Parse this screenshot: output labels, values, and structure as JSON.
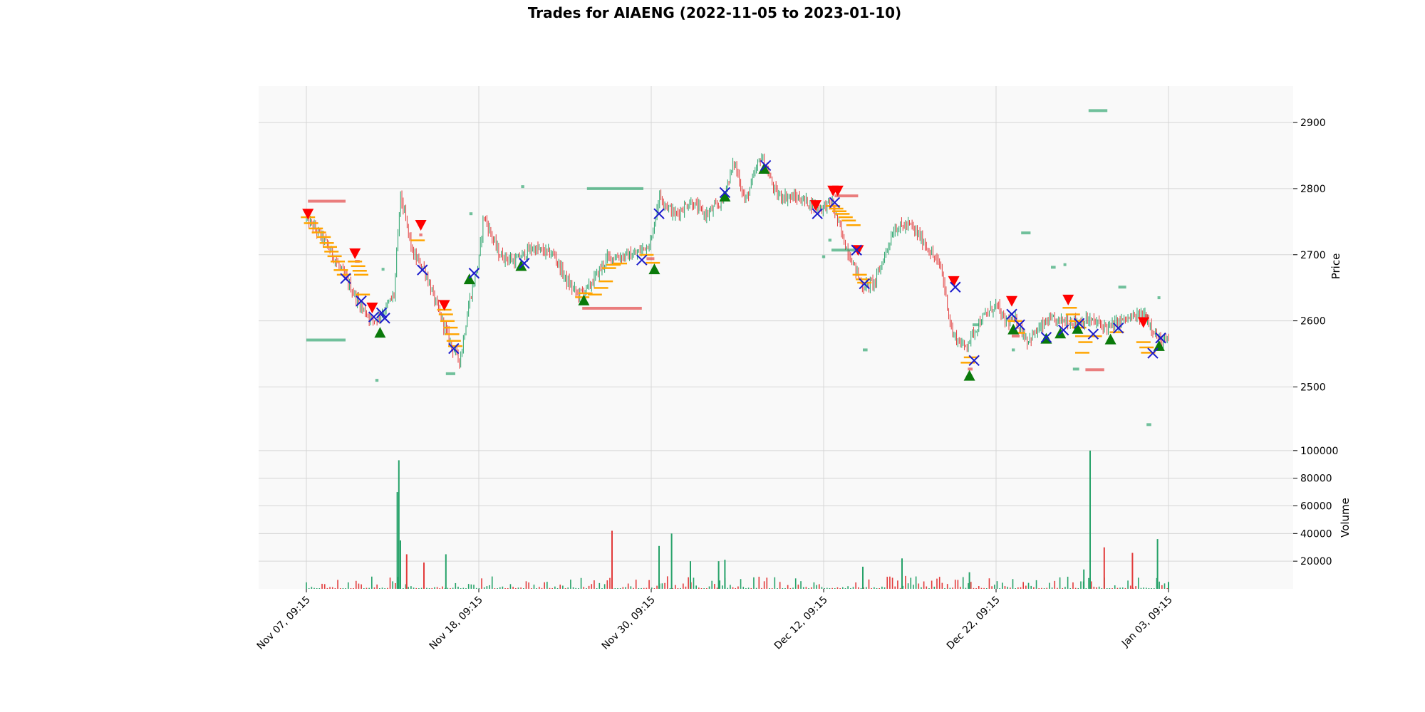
{
  "chart_data": {
    "type": "candlestick",
    "title": "Trades for AIAENG (2022-11-05 to 2023-01-10)",
    "x_tick_labels": [
      "Nov 07, 09:15",
      "Nov 18, 09:15",
      "Nov 30, 09:15",
      "Dec 12, 09:15",
      "Dec 22, 09:15",
      "Jan 03, 09:15"
    ],
    "price_axis": {
      "label": "Price",
      "ticks": [
        2500,
        2600,
        2700,
        2800,
        2900
      ],
      "ylim": [
        2410,
        2955
      ]
    },
    "volume_axis": {
      "label": "Volume",
      "ticks": [
        20000,
        40000,
        60000,
        80000,
        100000
      ],
      "ylim": [
        0,
        103000
      ]
    },
    "grid": true,
    "colors": {
      "up": "#26a269",
      "down": "#e23b3b",
      "buy_marker": "#0a7a0a",
      "sell_marker": "#ff0000",
      "exit_marker": "#1c1ccc",
      "level_mark": "#ffa500",
      "panel_bg": "#f9f9f9"
    },
    "price_path": [
      [
        0.0,
        2755
      ],
      [
        1.2,
        2720
      ],
      [
        2.6,
        2660
      ],
      [
        3.4,
        2625
      ],
      [
        4.2,
        2600
      ],
      [
        4.8,
        2610
      ],
      [
        5.6,
        2640
      ],
      [
        6.0,
        2790
      ],
      [
        6.8,
        2700
      ],
      [
        7.5,
        2680
      ],
      [
        8.2,
        2630
      ],
      [
        9.3,
        2560
      ],
      [
        9.8,
        2540
      ],
      [
        10.4,
        2630
      ],
      [
        11.0,
        2690
      ],
      [
        11.3,
        2760
      ],
      [
        12.3,
        2700
      ],
      [
        13.3,
        2690
      ],
      [
        14.4,
        2710
      ],
      [
        15.8,
        2700
      ],
      [
        16.6,
        2660
      ],
      [
        17.3,
        2640
      ],
      [
        18.0,
        2650
      ],
      [
        19.2,
        2695
      ],
      [
        21.0,
        2700
      ],
      [
        22.0,
        2720
      ],
      [
        22.5,
        2790
      ],
      [
        23.5,
        2760
      ],
      [
        24.5,
        2780
      ],
      [
        25.5,
        2760
      ],
      [
        26.5,
        2780
      ],
      [
        27.3,
        2840
      ],
      [
        28.0,
        2780
      ],
      [
        29.0,
        2850
      ],
      [
        30.0,
        2790
      ],
      [
        31.5,
        2785
      ],
      [
        32.8,
        2770
      ],
      [
        33.5,
        2780
      ],
      [
        34.3,
        2720
      ],
      [
        35.0,
        2680
      ],
      [
        35.5,
        2650
      ],
      [
        36.3,
        2660
      ],
      [
        37.5,
        2740
      ],
      [
        38.5,
        2745
      ],
      [
        39.2,
        2725
      ],
      [
        40.5,
        2680
      ],
      [
        41.2,
        2580
      ],
      [
        42.0,
        2560
      ],
      [
        43.0,
        2600
      ],
      [
        44.0,
        2625
      ],
      [
        44.5,
        2600
      ],
      [
        45.3,
        2600
      ],
      [
        46.0,
        2570
      ],
      [
        47.3,
        2600
      ],
      [
        48.5,
        2600
      ],
      [
        50.0,
        2600
      ],
      [
        51.2,
        2590
      ],
      [
        52.0,
        2600
      ],
      [
        53.5,
        2610
      ],
      [
        54.4,
        2570
      ],
      [
        55.0,
        2570
      ]
    ],
    "buy_entries": [
      [
        4.7,
        2582
      ],
      [
        10.4,
        2663
      ],
      [
        13.7,
        2683
      ],
      [
        17.7,
        2631
      ],
      [
        22.2,
        2678
      ],
      [
        26.7,
        2788
      ],
      [
        29.2,
        2830
      ],
      [
        42.3,
        2517
      ],
      [
        45.1,
        2587
      ],
      [
        47.2,
        2573
      ],
      [
        48.1,
        2581
      ],
      [
        49.2,
        2588
      ],
      [
        51.3,
        2572
      ],
      [
        54.4,
        2562
      ]
    ],
    "sell_entries": [
      [
        0.1,
        2762
      ],
      [
        3.1,
        2702
      ],
      [
        4.2,
        2620
      ],
      [
        7.3,
        2745
      ],
      [
        8.8,
        2624
      ],
      [
        32.5,
        2775
      ],
      [
        33.6,
        2797
      ],
      [
        33.9,
        2797
      ],
      [
        35.2,
        2707
      ],
      [
        41.3,
        2660
      ],
      [
        45.0,
        2630
      ],
      [
        48.6,
        2632
      ],
      [
        53.4,
        2598
      ]
    ],
    "exits": [
      [
        2.5,
        2664
      ],
      [
        3.5,
        2630
      ],
      [
        4.3,
        2606
      ],
      [
        4.8,
        2612
      ],
      [
        5.0,
        2604
      ],
      [
        7.4,
        2677
      ],
      [
        9.4,
        2558
      ],
      [
        10.7,
        2672
      ],
      [
        13.9,
        2687
      ],
      [
        21.4,
        2692
      ],
      [
        22.5,
        2762
      ],
      [
        26.7,
        2794
      ],
      [
        29.3,
        2835
      ],
      [
        32.6,
        2762
      ],
      [
        33.7,
        2779
      ],
      [
        35.1,
        2707
      ],
      [
        35.6,
        2656
      ],
      [
        41.4,
        2651
      ],
      [
        42.6,
        2540
      ],
      [
        45.0,
        2610
      ],
      [
        45.5,
        2594
      ],
      [
        47.2,
        2575
      ],
      [
        48.3,
        2586
      ],
      [
        49.3,
        2596
      ],
      [
        50.2,
        2580
      ],
      [
        51.8,
        2589
      ],
      [
        54.0,
        2551
      ],
      [
        54.5,
        2574
      ]
    ],
    "level_marks": [
      [
        0.1,
        2757
      ],
      [
        0.3,
        2748
      ],
      [
        0.6,
        2740
      ],
      [
        0.8,
        2734
      ],
      [
        1.1,
        2727
      ],
      [
        1.3,
        2718
      ],
      [
        1.5,
        2712
      ],
      [
        1.6,
        2705
      ],
      [
        1.8,
        2698
      ],
      [
        2.0,
        2690
      ],
      [
        2.2,
        2677
      ],
      [
        2.4,
        2670
      ],
      [
        3.1,
        2690
      ],
      [
        3.3,
        2683
      ],
      [
        3.4,
        2676
      ],
      [
        3.5,
        2670
      ],
      [
        3.6,
        2640
      ],
      [
        7.1,
        2722
      ],
      [
        8.8,
        2617
      ],
      [
        8.9,
        2610
      ],
      [
        9.0,
        2600
      ],
      [
        9.2,
        2590
      ],
      [
        9.3,
        2580
      ],
      [
        9.4,
        2570
      ],
      [
        9.5,
        2562
      ],
      [
        17.6,
        2636
      ],
      [
        17.8,
        2642
      ],
      [
        18.4,
        2640
      ],
      [
        18.8,
        2650
      ],
      [
        19.1,
        2660
      ],
      [
        19.3,
        2680
      ],
      [
        19.6,
        2685
      ],
      [
        20.0,
        2687
      ],
      [
        21.7,
        2700
      ],
      [
        22.1,
        2688
      ],
      [
        33.6,
        2774
      ],
      [
        33.8,
        2770
      ],
      [
        34.0,
        2766
      ],
      [
        34.2,
        2762
      ],
      [
        34.4,
        2757
      ],
      [
        34.6,
        2752
      ],
      [
        34.9,
        2745
      ],
      [
        35.3,
        2670
      ],
      [
        35.5,
        2663
      ],
      [
        35.6,
        2658
      ],
      [
        42.2,
        2537
      ],
      [
        42.4,
        2545
      ],
      [
        45.2,
        2600
      ],
      [
        45.4,
        2582
      ],
      [
        48.7,
        2620
      ],
      [
        48.9,
        2610
      ],
      [
        49.1,
        2600
      ],
      [
        49.3,
        2590
      ],
      [
        49.5,
        2577
      ],
      [
        49.7,
        2568
      ],
      [
        49.5,
        2552
      ],
      [
        50.3,
        2577
      ],
      [
        51.7,
        2583
      ],
      [
        53.4,
        2568
      ],
      [
        53.6,
        2560
      ],
      [
        53.7,
        2552
      ]
    ],
    "green_range_bars": [
      [
        0.0,
        2.5,
        2571
      ],
      [
        4.4,
        4.6,
        2510
      ],
      [
        4.8,
        4.9,
        2678
      ],
      [
        8.9,
        9.5,
        2520
      ],
      [
        10.4,
        10.6,
        2762
      ],
      [
        13.7,
        13.9,
        2803
      ],
      [
        17.9,
        21.5,
        2800
      ],
      [
        32.9,
        33.1,
        2697
      ],
      [
        33.3,
        33.5,
        2722
      ],
      [
        33.5,
        35.0,
        2707
      ],
      [
        35.5,
        35.8,
        2556
      ],
      [
        42.5,
        42.9,
        2594
      ],
      [
        45.0,
        45.2,
        2556
      ],
      [
        45.6,
        46.2,
        2733
      ],
      [
        47.5,
        47.8,
        2681
      ],
      [
        48.3,
        48.4,
        2685
      ],
      [
        48.9,
        49.3,
        2527
      ],
      [
        49.9,
        51.1,
        2918
      ],
      [
        51.8,
        52.3,
        2651
      ],
      [
        53.6,
        53.9,
        2443
      ],
      [
        54.3,
        54.4,
        2635
      ]
    ],
    "red_range_bars": [
      [
        0.1,
        2.5,
        2781
      ],
      [
        3.1,
        3.4,
        2690
      ],
      [
        7.2,
        7.4,
        2730
      ],
      [
        17.6,
        21.4,
        2619
      ],
      [
        21.7,
        22.2,
        2694
      ],
      [
        33.7,
        35.2,
        2789
      ],
      [
        42.2,
        42.5,
        2527
      ],
      [
        45.0,
        45.5,
        2577
      ],
      [
        49.7,
        50.9,
        2526
      ],
      [
        53.5,
        53.7,
        2608
      ]
    ],
    "volume_spikes": [
      [
        5.8,
        70000,
        "up"
      ],
      [
        5.9,
        93000,
        "up"
      ],
      [
        6.0,
        35000,
        "up"
      ],
      [
        6.4,
        25000,
        "down"
      ],
      [
        7.5,
        19000,
        "down"
      ],
      [
        8.9,
        25000,
        "up"
      ],
      [
        19.5,
        42000,
        "down"
      ],
      [
        22.5,
        31000,
        "up"
      ],
      [
        23.3,
        40000,
        "up"
      ],
      [
        24.5,
        20000,
        "up"
      ],
      [
        26.3,
        20000,
        "up"
      ],
      [
        26.7,
        21000,
        "up"
      ],
      [
        35.5,
        16000,
        "up"
      ],
      [
        38.0,
        22000,
        "up"
      ],
      [
        42.3,
        12000,
        "up"
      ],
      [
        49.6,
        14000,
        "up"
      ],
      [
        50.0,
        100000,
        "up"
      ],
      [
        50.9,
        30000,
        "down"
      ],
      [
        52.7,
        26000,
        "down"
      ],
      [
        54.3,
        36000,
        "up"
      ],
      [
        55.0,
        5000,
        "up"
      ]
    ]
  }
}
